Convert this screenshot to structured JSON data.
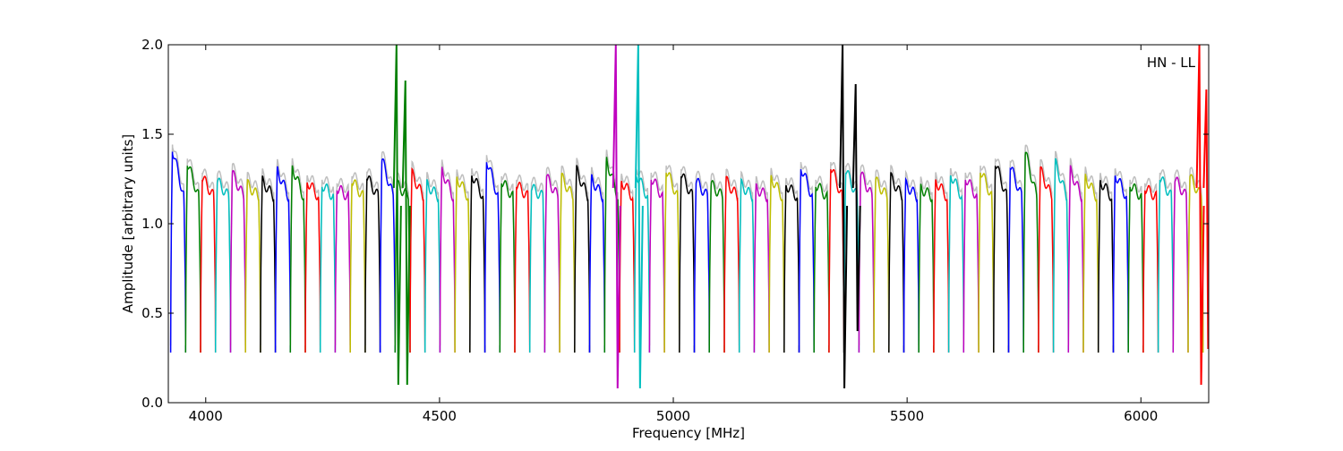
{
  "chart_data": {
    "type": "line",
    "xlabel": "Frequency [MHz]",
    "ylabel": "Amplitude [arbitrary units]",
    "annotation": "HN - LL",
    "xlim": [
      3920,
      6145
    ],
    "ylim": [
      0.0,
      2.0
    ],
    "x_ticks": [
      {
        "value": 4000,
        "label": "4000"
      },
      {
        "value": 4500,
        "label": "4500"
      },
      {
        "value": 5000,
        "label": "5000"
      },
      {
        "value": 5500,
        "label": "5500"
      },
      {
        "value": 6000,
        "label": "6000"
      }
    ],
    "y_ticks": [
      {
        "value": 0.0,
        "label": "0.0"
      },
      {
        "value": 0.5,
        "label": "0.5"
      },
      {
        "value": 1.0,
        "label": "1.0"
      },
      {
        "value": 1.5,
        "label": "1.5"
      },
      {
        "value": 2.0,
        "label": "2.0"
      }
    ],
    "grid": false,
    "legend": "none",
    "background_trace_color": "#bfbfbf",
    "palette": [
      "#0000ff",
      "#008000",
      "#ff0000",
      "#00bfbf",
      "#bf00bf",
      "#bfbf00",
      "#000000"
    ],
    "channel_start_mhz": 3925,
    "channel_width_mhz": 32,
    "channel_peak_amplitudes": [
      1.42,
      1.34,
      1.26,
      1.24,
      1.28,
      1.22,
      1.24,
      1.3,
      1.32,
      1.24,
      1.22,
      1.2,
      1.24,
      1.26,
      1.36,
      1.22,
      1.28,
      1.22,
      1.3,
      1.26,
      1.28,
      1.36,
      1.24,
      1.22,
      1.2,
      1.26,
      1.26,
      1.3,
      1.25,
      1.36,
      1.24,
      1.28,
      1.26,
      1.3,
      1.28,
      1.24,
      1.22,
      1.24,
      1.22,
      1.2,
      1.26,
      1.22,
      1.32,
      1.22,
      1.32,
      1.3,
      1.28,
      1.24,
      1.26,
      1.22,
      1.2,
      1.24,
      1.28,
      1.26,
      1.3,
      1.34,
      1.32,
      1.4,
      1.3,
      1.34,
      1.3,
      1.26,
      1.24,
      1.28,
      1.22,
      1.2,
      1.26,
      1.25,
      1.26
    ],
    "spikes": [
      {
        "x": 4408,
        "y_min": 0.1,
        "y_max": 2.0,
        "color": "#008000"
      },
      {
        "x": 4427,
        "y_min": 0.1,
        "y_max": 1.8,
        "color": "#008000"
      },
      {
        "x": 4877,
        "y_min": 0.08,
        "y_max": 2.0,
        "color": "#bf00bf"
      },
      {
        "x": 4925,
        "y_min": 0.08,
        "y_max": 2.0,
        "color": "#00bfbf"
      },
      {
        "x": 5362,
        "y_min": 0.08,
        "y_max": 2.0,
        "color": "#000000"
      },
      {
        "x": 5390,
        "y_min": 0.4,
        "y_max": 1.78,
        "color": "#000000"
      },
      {
        "x": 6125,
        "y_min": 0.1,
        "y_max": 2.0,
        "color": "#ff0000"
      },
      {
        "x": 6140,
        "y_min": 0.3,
        "y_max": 1.75,
        "color": "#ff0000"
      }
    ]
  }
}
